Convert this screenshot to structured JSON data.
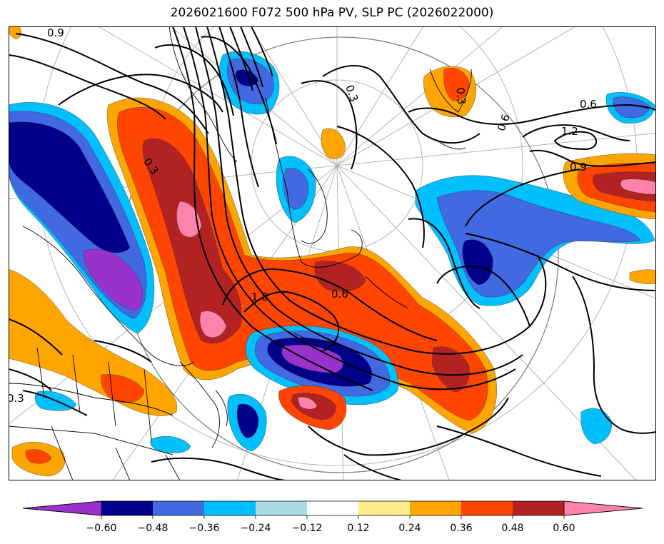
{
  "title": "2026021600 F072 500 hPa PV, SLP PC (2026022000)",
  "colorbar": {
    "ticks": [
      "−0.60",
      "−0.48",
      "−0.36",
      "−0.24",
      "−0.12",
      "0.12",
      "0.24",
      "0.36",
      "0.48",
      "0.60"
    ],
    "colors": [
      "#9932CC",
      "#00008B",
      "#4169E1",
      "#00BFFF",
      "#ADD8E6",
      "#FFFFFF",
      "#FFEC8B",
      "#FFA500",
      "#FF4500",
      "#B22222",
      "#FF82AB"
    ]
  },
  "contour_labels": [
    "0.9",
    "0.3",
    "0.3",
    "0.6",
    "1.2",
    "0.9",
    "0.3",
    "0.6",
    "1.8",
    "0.3",
    "0.6"
  ],
  "palette": {
    "purple": "#9932CC",
    "navy": "#00008B",
    "royal": "#4169E1",
    "sky": "#00BFFF",
    "light": "#ADD8E6",
    "yellow": "#FFEC8B",
    "orange": "#FFA500",
    "redorange": "#FF4500",
    "darkred": "#B22222",
    "pink": "#FF82AB"
  }
}
